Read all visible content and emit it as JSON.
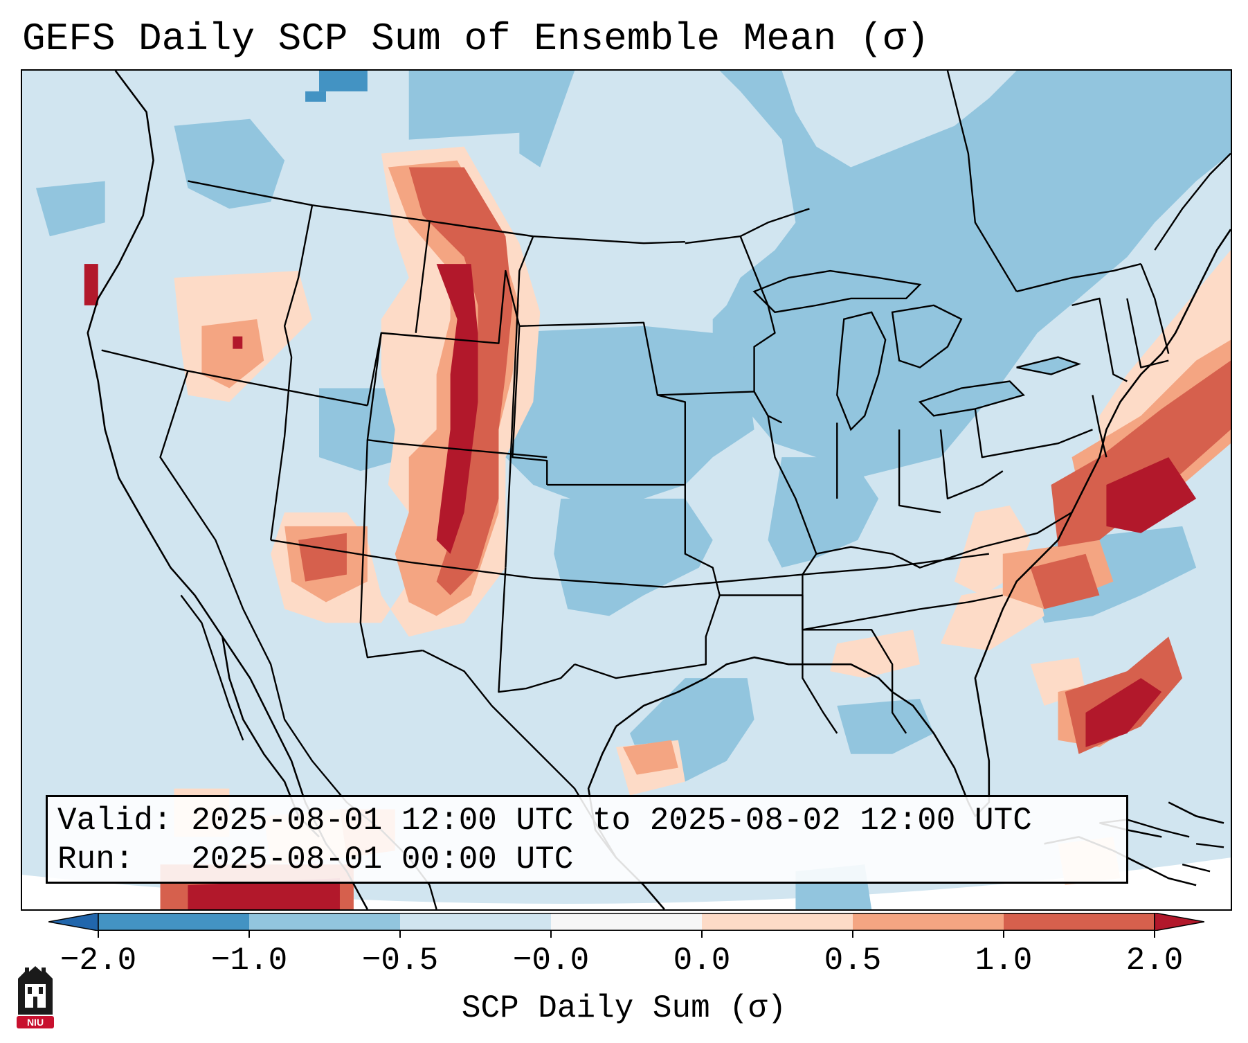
{
  "title": "GEFS Daily SCP Sum of Ensemble Mean (σ)",
  "info_box": {
    "valid_line": "Valid: 2025-08-01 12:00 UTC to 2025-08-02 12:00 UTC",
    "run_line": "Run:   2025-08-01 00:00 UTC"
  },
  "colorbar": {
    "label": "SCP Daily Sum (σ)",
    "ticks": [
      "-2.0",
      "-1.0",
      "-0.5",
      "-0.0",
      "0.0",
      "0.5",
      "1.0",
      "2.0"
    ],
    "colors": [
      "#4393c3",
      "#92c5de",
      "#d1e5f0",
      "#f7f7f7",
      "#fddbc7",
      "#f4a582",
      "#d6604d",
      "#b2182b"
    ],
    "under_color": "#2166ac",
    "over_color": "#b2182b"
  },
  "logo": {
    "text": "NIU",
    "color": "#c8102e"
  },
  "chart_data": {
    "type": "heatmap",
    "title": "GEFS Daily SCP Sum of Ensemble Mean (σ)",
    "colorbar_label": "SCP Daily Sum (σ)",
    "levels": [
      -2.0,
      -1.0,
      -0.5,
      -0.0,
      0.0,
      0.5,
      1.0,
      2.0
    ],
    "extend": "both",
    "region": "Continental United States",
    "features": [
      "coastlines",
      "state borders",
      "country borders"
    ],
    "valid_start": "2025-08-01 12:00 UTC",
    "valid_end": "2025-08-02 12:00 UTC",
    "run": "2025-08-01 00:00 UTC"
  }
}
